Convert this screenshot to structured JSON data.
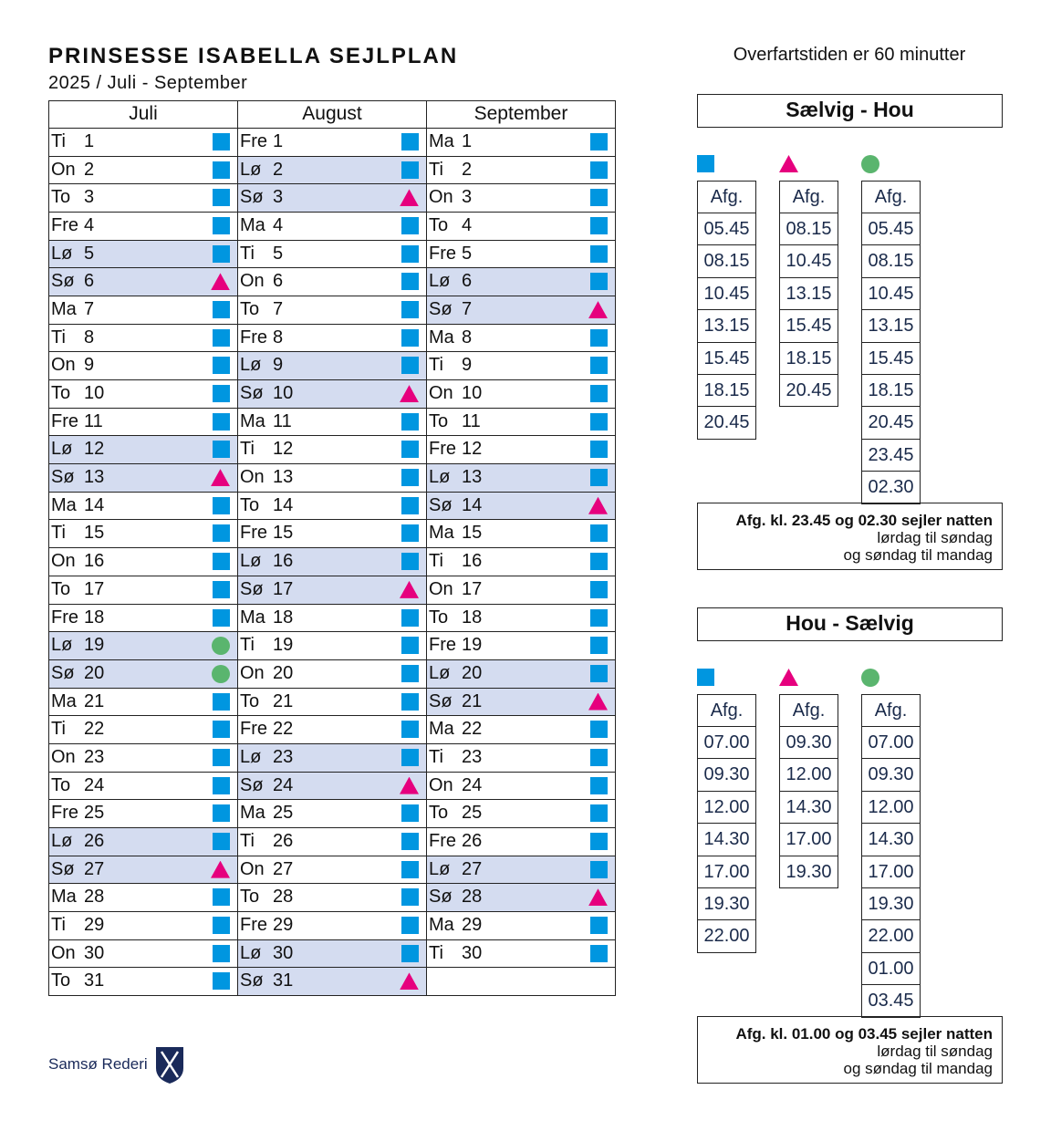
{
  "header": {
    "title": "PRINSESSE ISABELLA SEJLPLAN",
    "subtitle": "2025 / Juli - September",
    "note": "Overfartstiden er 60 minutter"
  },
  "calendar": {
    "months": [
      {
        "name": "Juli",
        "days": [
          [
            "Ti",
            1,
            "square",
            false
          ],
          [
            "On",
            2,
            "square",
            false
          ],
          [
            "To",
            3,
            "square",
            false
          ],
          [
            "Fre",
            4,
            "square",
            false
          ],
          [
            "Lø",
            5,
            "square",
            true
          ],
          [
            "Sø",
            6,
            "triangle",
            true
          ],
          [
            "Ma",
            7,
            "square",
            false
          ],
          [
            "Ti",
            8,
            "square",
            false
          ],
          [
            "On",
            9,
            "square",
            false
          ],
          [
            "To",
            10,
            "square",
            false
          ],
          [
            "Fre",
            11,
            "square",
            false
          ],
          [
            "Lø",
            12,
            "square",
            true
          ],
          [
            "Sø",
            13,
            "triangle",
            true
          ],
          [
            "Ma",
            14,
            "square",
            false
          ],
          [
            "Ti",
            15,
            "square",
            false
          ],
          [
            "On",
            16,
            "square",
            false
          ],
          [
            "To",
            17,
            "square",
            false
          ],
          [
            "Fre",
            18,
            "square",
            false
          ],
          [
            "Lø",
            19,
            "circle",
            true
          ],
          [
            "Sø",
            20,
            "circle",
            true
          ],
          [
            "Ma",
            21,
            "square",
            false
          ],
          [
            "Ti",
            22,
            "square",
            false
          ],
          [
            "On",
            23,
            "square",
            false
          ],
          [
            "To",
            24,
            "square",
            false
          ],
          [
            "Fre",
            25,
            "square",
            false
          ],
          [
            "Lø",
            26,
            "square",
            true
          ],
          [
            "Sø",
            27,
            "triangle",
            true
          ],
          [
            "Ma",
            28,
            "square",
            false
          ],
          [
            "Ti",
            29,
            "square",
            false
          ],
          [
            "On",
            30,
            "square",
            false
          ],
          [
            "To",
            31,
            "square",
            false
          ]
        ]
      },
      {
        "name": "August",
        "days": [
          [
            "Fre",
            1,
            "square",
            false
          ],
          [
            "Lø",
            2,
            "square",
            true
          ],
          [
            "Sø",
            3,
            "triangle",
            true
          ],
          [
            "Ma",
            4,
            "square",
            false
          ],
          [
            "Ti",
            5,
            "square",
            false
          ],
          [
            "On",
            6,
            "square",
            false
          ],
          [
            "To",
            7,
            "square",
            false
          ],
          [
            "Fre",
            8,
            "square",
            false
          ],
          [
            "Lø",
            9,
            "square",
            true
          ],
          [
            "Sø",
            10,
            "triangle",
            true
          ],
          [
            "Ma",
            11,
            "square",
            false
          ],
          [
            "Ti",
            12,
            "square",
            false
          ],
          [
            "On",
            13,
            "square",
            false
          ],
          [
            "To",
            14,
            "square",
            false
          ],
          [
            "Fre",
            15,
            "square",
            false
          ],
          [
            "Lø",
            16,
            "square",
            true
          ],
          [
            "Sø",
            17,
            "triangle",
            true
          ],
          [
            "Ma",
            18,
            "square",
            false
          ],
          [
            "Ti",
            19,
            "square",
            false
          ],
          [
            "On",
            20,
            "square",
            false
          ],
          [
            "To",
            21,
            "square",
            false
          ],
          [
            "Fre",
            22,
            "square",
            false
          ],
          [
            "Lø",
            23,
            "square",
            true
          ],
          [
            "Sø",
            24,
            "triangle",
            true
          ],
          [
            "Ma",
            25,
            "square",
            false
          ],
          [
            "Ti",
            26,
            "square",
            false
          ],
          [
            "On",
            27,
            "square",
            false
          ],
          [
            "To",
            28,
            "square",
            false
          ],
          [
            "Fre",
            29,
            "square",
            false
          ],
          [
            "Lø",
            30,
            "square",
            true
          ],
          [
            "Sø",
            31,
            "triangle",
            true
          ]
        ]
      },
      {
        "name": "September",
        "days": [
          [
            "Ma",
            1,
            "square",
            false
          ],
          [
            "Ti",
            2,
            "square",
            false
          ],
          [
            "On",
            3,
            "square",
            false
          ],
          [
            "To",
            4,
            "square",
            false
          ],
          [
            "Fre",
            5,
            "square",
            false
          ],
          [
            "Lø",
            6,
            "square",
            true
          ],
          [
            "Sø",
            7,
            "triangle",
            true
          ],
          [
            "Ma",
            8,
            "square",
            false
          ],
          [
            "Ti",
            9,
            "square",
            false
          ],
          [
            "On",
            10,
            "square",
            false
          ],
          [
            "To",
            11,
            "square",
            false
          ],
          [
            "Fre",
            12,
            "square",
            false
          ],
          [
            "Lø",
            13,
            "square",
            true
          ],
          [
            "Sø",
            14,
            "triangle",
            true
          ],
          [
            "Ma",
            15,
            "square",
            false
          ],
          [
            "Ti",
            16,
            "square",
            false
          ],
          [
            "On",
            17,
            "square",
            false
          ],
          [
            "To",
            18,
            "square",
            false
          ],
          [
            "Fre",
            19,
            "square",
            false
          ],
          [
            "Lø",
            20,
            "square",
            true
          ],
          [
            "Sø",
            21,
            "triangle",
            true
          ],
          [
            "Ma",
            22,
            "square",
            false
          ],
          [
            "Ti",
            23,
            "square",
            false
          ],
          [
            "On",
            24,
            "square",
            false
          ],
          [
            "To",
            25,
            "square",
            false
          ],
          [
            "Fre",
            26,
            "square",
            false
          ],
          [
            "Lø",
            27,
            "square",
            true
          ],
          [
            "Sø",
            28,
            "triangle",
            true
          ],
          [
            "Ma",
            29,
            "square",
            false
          ],
          [
            "Ti",
            30,
            "square",
            false
          ]
        ]
      }
    ]
  },
  "routes": [
    {
      "title": "Sælvig - Hou",
      "columns": [
        {
          "mark": "square",
          "header": "Afg.",
          "times": [
            "05.45",
            "08.15",
            "10.45",
            "13.15",
            "15.45",
            "18.15",
            "20.45"
          ]
        },
        {
          "mark": "triangle",
          "header": "Afg.",
          "times": [
            "08.15",
            "10.45",
            "13.15",
            "15.45",
            "18.15",
            "20.45"
          ]
        },
        {
          "mark": "circle",
          "header": "Afg.",
          "times": [
            "05.45",
            "08.15",
            "10.45",
            "13.15",
            "15.45",
            "18.15",
            "20.45",
            "23.45",
            "02.30"
          ]
        }
      ],
      "note": [
        "Afg. kl. 23.45 og 02.30 sejler natten",
        "lørdag til søndag",
        "og søndag til mandag"
      ]
    },
    {
      "title": "Hou - Sælvig",
      "columns": [
        {
          "mark": "square",
          "header": "Afg.",
          "times": [
            "07.00",
            "09.30",
            "12.00",
            "14.30",
            "17.00",
            "19.30",
            "22.00"
          ]
        },
        {
          "mark": "triangle",
          "header": "Afg.",
          "times": [
            "09.30",
            "12.00",
            "14.30",
            "17.00",
            "19.30"
          ]
        },
        {
          "mark": "circle",
          "header": "Afg.",
          "times": [
            "07.00",
            "09.30",
            "12.00",
            "14.30",
            "17.00",
            "19.30",
            "22.00",
            "01.00",
            "03.45"
          ]
        }
      ],
      "note": [
        "Afg. kl. 01.00 og 03.45 sejler natten",
        "lørdag til søndag",
        "og søndag til mandag"
      ]
    }
  ],
  "footer": {
    "brand": "Samsø Rederi"
  }
}
